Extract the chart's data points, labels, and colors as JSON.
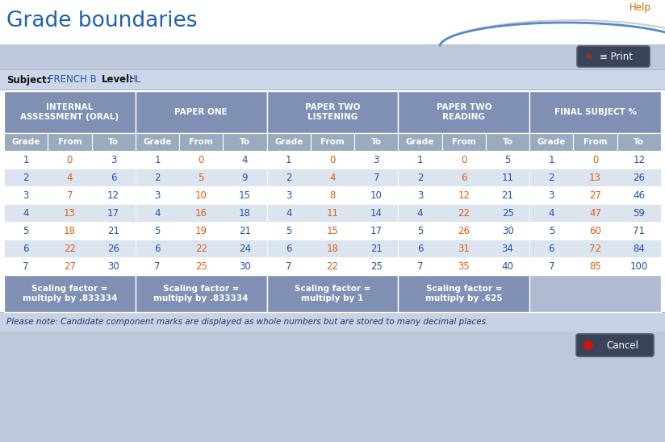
{
  "title": "Grade boundaries",
  "subject_label": "Subject:",
  "subject_value": "FRENCH B",
  "level_label": "Level:",
  "level_value": "HL",
  "help_text": "Help",
  "print_text": "≡ Print",
  "cancel_text": "Cancel",
  "note_text": "Please note: Candidate component marks are displayed as whole numbers but are stored to many decimal places.",
  "sections": [
    {
      "name": "INTERNAL\nASSESSMENT (ORAL)",
      "scaling": "Scaling factor =\nmultiply by .833334"
    },
    {
      "name": "PAPER ONE",
      "scaling": "Scaling factor =\nmultiply by .833334"
    },
    {
      "name": "PAPER TWO\nLISTENING",
      "scaling": "Scaling factor =\nmultiply by 1"
    },
    {
      "name": "PAPER TWO\nREADING",
      "scaling": "Scaling factor =\nmultiply by .625"
    },
    {
      "name": "FINAL SUBJECT %",
      "scaling": ""
    }
  ],
  "col_headers": [
    "Grade",
    "From",
    "To"
  ],
  "data": [
    [
      [
        1,
        0,
        3
      ],
      [
        1,
        0,
        4
      ],
      [
        1,
        0,
        3
      ],
      [
        1,
        0,
        5
      ],
      [
        1,
        0,
        12
      ]
    ],
    [
      [
        2,
        4,
        6
      ],
      [
        2,
        5,
        9
      ],
      [
        2,
        4,
        7
      ],
      [
        2,
        6,
        11
      ],
      [
        2,
        13,
        26
      ]
    ],
    [
      [
        3,
        7,
        12
      ],
      [
        3,
        10,
        15
      ],
      [
        3,
        8,
        10
      ],
      [
        3,
        12,
        21
      ],
      [
        3,
        27,
        46
      ]
    ],
    [
      [
        4,
        13,
        17
      ],
      [
        4,
        16,
        18
      ],
      [
        4,
        11,
        14
      ],
      [
        4,
        22,
        25
      ],
      [
        4,
        47,
        59
      ]
    ],
    [
      [
        5,
        18,
        21
      ],
      [
        5,
        19,
        21
      ],
      [
        5,
        15,
        17
      ],
      [
        5,
        26,
        30
      ],
      [
        5,
        60,
        71
      ]
    ],
    [
      [
        6,
        22,
        26
      ],
      [
        6,
        22,
        24
      ],
      [
        6,
        18,
        21
      ],
      [
        6,
        31,
        34
      ],
      [
        6,
        72,
        84
      ]
    ],
    [
      [
        7,
        27,
        30
      ],
      [
        7,
        25,
        30
      ],
      [
        7,
        22,
        25
      ],
      [
        7,
        35,
        40
      ],
      [
        7,
        85,
        100
      ]
    ]
  ],
  "colors": {
    "title_blue": "#2060B0",
    "top_bg": "#FFFFFF",
    "print_bar_bg": "#BEC8DC",
    "subject_bar_bg": "#CDD6E8",
    "table_outer_bg": "#C8D2E5",
    "header_bg": "#8090B4",
    "col_header_bg": "#9AAABF",
    "row_white": "#FFFFFF",
    "row_light": "#DCE4F0",
    "scaling_bg": "#8090B4",
    "scaling_light_bg": "#B0BAD0",
    "help_color": "#CC6600",
    "orange_from": "#E06010",
    "blue_to": "#2255AA",
    "grade_blue": "#2255AA",
    "white_text": "#FFFFFF",
    "dark_text": "#111111",
    "note_bar_bg": "#C8D2E4",
    "bottom_bar_bg": "#BEC8DC",
    "btn_bg": "#3A4458",
    "btn_border": "#555A6A",
    "note_text_color": "#1A3A6A"
  }
}
